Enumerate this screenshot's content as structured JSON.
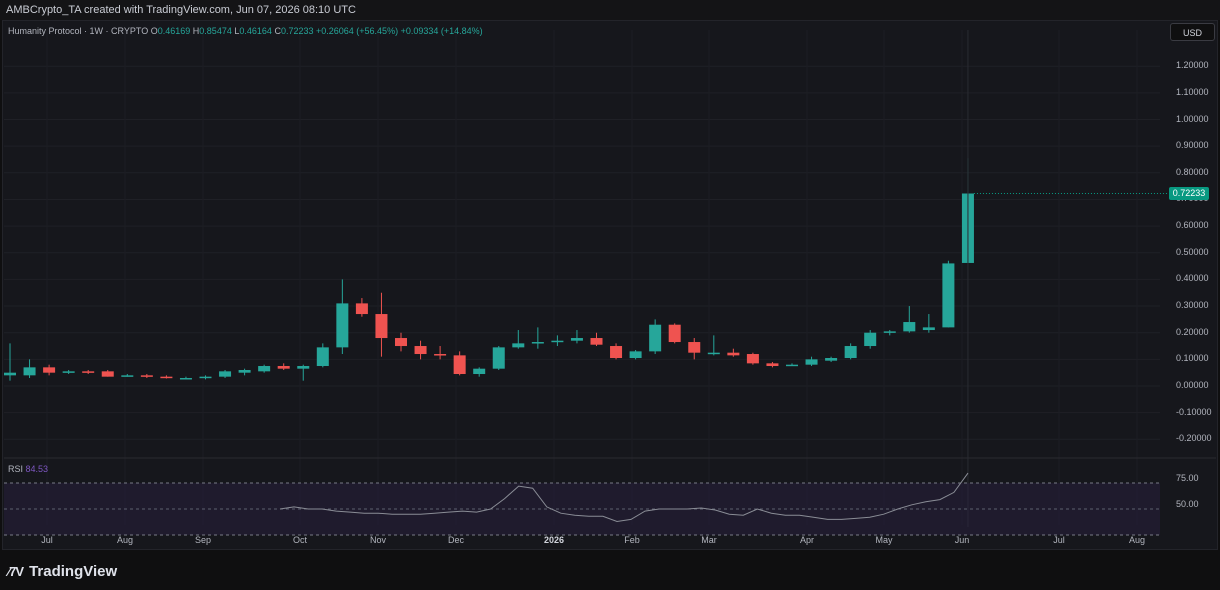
{
  "header": {
    "attribution": "AMBCrypto_TA created with TradingView.com, Jun 07, 2026 08:10 UTC"
  },
  "legend": {
    "symbol": "Humanity Protocol · 1W · CRYPTO",
    "o_label": "O",
    "o_value": "0.46169",
    "h_label": "H",
    "h_value": "0.85474",
    "l_label": "L",
    "l_value": "0.46164",
    "c_label": "C",
    "c_value": "0.72233",
    "change": "+0.26064 (+56.45%)",
    "vol_change": "+0.09334 (+14.84%)"
  },
  "currency": "USD",
  "last_price": "0.72233",
  "price_axis": [
    "1.20000",
    "1.10000",
    "1.00000",
    "0.90000",
    "0.80000",
    "0.70000",
    "0.60000",
    "0.50000",
    "0.40000",
    "0.30000",
    "0.20000",
    "0.10000",
    "0.00000",
    "-0.10000",
    "-0.20000"
  ],
  "rsi": {
    "label": "RSI",
    "value": "84.53",
    "levels": [
      "75.00",
      "50.00"
    ]
  },
  "time_axis": [
    "Jul",
    "Aug",
    "Sep",
    "Oct",
    "Nov",
    "Dec",
    "2026",
    "Feb",
    "Mar",
    "Apr",
    "May",
    "Jun",
    "Jul",
    "Aug"
  ],
  "brand": {
    "name": "TradingView"
  },
  "colors": {
    "up": "#26a69a",
    "down": "#ef5350",
    "rsi_line": "#8a8d96",
    "background": "#16171c"
  },
  "chart_data": {
    "type": "candlestick",
    "title": "Humanity Protocol · 1W · CRYPTO",
    "ylim": [
      -0.22,
      1.3
    ],
    "candles": [
      {
        "o": 0.04,
        "h": 0.16,
        "l": 0.02,
        "c": 0.05
      },
      {
        "o": 0.04,
        "h": 0.1,
        "l": 0.03,
        "c": 0.07
      },
      {
        "o": 0.07,
        "h": 0.08,
        "l": 0.04,
        "c": 0.05
      },
      {
        "o": 0.05,
        "h": 0.06,
        "l": 0.045,
        "c": 0.055
      },
      {
        "o": 0.055,
        "h": 0.06,
        "l": 0.045,
        "c": 0.05
      },
      {
        "o": 0.055,
        "h": 0.06,
        "l": 0.035,
        "c": 0.035
      },
      {
        "o": 0.04,
        "h": 0.045,
        "l": 0.035,
        "c": 0.04
      },
      {
        "o": 0.04,
        "h": 0.045,
        "l": 0.03,
        "c": 0.035
      },
      {
        "o": 0.035,
        "h": 0.04,
        "l": 0.028,
        "c": 0.03
      },
      {
        "o": 0.03,
        "h": 0.035,
        "l": 0.025,
        "c": 0.03
      },
      {
        "o": 0.03,
        "h": 0.04,
        "l": 0.025,
        "c": 0.035
      },
      {
        "o": 0.035,
        "h": 0.06,
        "l": 0.03,
        "c": 0.055
      },
      {
        "o": 0.05,
        "h": 0.065,
        "l": 0.04,
        "c": 0.06
      },
      {
        "o": 0.055,
        "h": 0.08,
        "l": 0.05,
        "c": 0.075
      },
      {
        "o": 0.075,
        "h": 0.085,
        "l": 0.06,
        "c": 0.065
      },
      {
        "o": 0.065,
        "h": 0.08,
        "l": 0.02,
        "c": 0.075
      },
      {
        "o": 0.075,
        "h": 0.16,
        "l": 0.07,
        "c": 0.145
      },
      {
        "o": 0.145,
        "h": 0.4,
        "l": 0.12,
        "c": 0.31
      },
      {
        "o": 0.31,
        "h": 0.33,
        "l": 0.26,
        "c": 0.27
      },
      {
        "o": 0.27,
        "h": 0.35,
        "l": 0.11,
        "c": 0.18
      },
      {
        "o": 0.18,
        "h": 0.2,
        "l": 0.13,
        "c": 0.15
      },
      {
        "o": 0.15,
        "h": 0.17,
        "l": 0.1,
        "c": 0.12
      },
      {
        "o": 0.12,
        "h": 0.15,
        "l": 0.1,
        "c": 0.115
      },
      {
        "o": 0.115,
        "h": 0.13,
        "l": 0.04,
        "c": 0.045
      },
      {
        "o": 0.045,
        "h": 0.07,
        "l": 0.035,
        "c": 0.065
      },
      {
        "o": 0.065,
        "h": 0.15,
        "l": 0.06,
        "c": 0.145
      },
      {
        "o": 0.145,
        "h": 0.21,
        "l": 0.14,
        "c": 0.16
      },
      {
        "o": 0.16,
        "h": 0.22,
        "l": 0.14,
        "c": 0.165
      },
      {
        "o": 0.165,
        "h": 0.19,
        "l": 0.15,
        "c": 0.17
      },
      {
        "o": 0.17,
        "h": 0.21,
        "l": 0.16,
        "c": 0.18
      },
      {
        "o": 0.18,
        "h": 0.2,
        "l": 0.15,
        "c": 0.155
      },
      {
        "o": 0.15,
        "h": 0.16,
        "l": 0.1,
        "c": 0.105
      },
      {
        "o": 0.105,
        "h": 0.135,
        "l": 0.1,
        "c": 0.13
      },
      {
        "o": 0.13,
        "h": 0.25,
        "l": 0.12,
        "c": 0.23
      },
      {
        "o": 0.23,
        "h": 0.235,
        "l": 0.16,
        "c": 0.165
      },
      {
        "o": 0.165,
        "h": 0.18,
        "l": 0.1,
        "c": 0.125
      },
      {
        "o": 0.125,
        "h": 0.19,
        "l": 0.115,
        "c": 0.125
      },
      {
        "o": 0.125,
        "h": 0.14,
        "l": 0.11,
        "c": 0.115
      },
      {
        "o": 0.12,
        "h": 0.125,
        "l": 0.08,
        "c": 0.085
      },
      {
        "o": 0.085,
        "h": 0.09,
        "l": 0.07,
        "c": 0.075
      },
      {
        "o": 0.08,
        "h": 0.085,
        "l": 0.075,
        "c": 0.08
      },
      {
        "o": 0.08,
        "h": 0.11,
        "l": 0.075,
        "c": 0.1
      },
      {
        "o": 0.095,
        "h": 0.11,
        "l": 0.09,
        "c": 0.105
      },
      {
        "o": 0.105,
        "h": 0.16,
        "l": 0.1,
        "c": 0.15
      },
      {
        "o": 0.15,
        "h": 0.21,
        "l": 0.14,
        "c": 0.2
      },
      {
        "o": 0.2,
        "h": 0.21,
        "l": 0.19,
        "c": 0.205
      },
      {
        "o": 0.205,
        "h": 0.3,
        "l": 0.2,
        "c": 0.24
      },
      {
        "o": 0.21,
        "h": 0.27,
        "l": 0.2,
        "c": 0.22
      },
      {
        "o": 0.22,
        "h": 0.47,
        "l": 0.22,
        "c": 0.46
      },
      {
        "o": 0.46169,
        "h": 0.85474,
        "l": 0.46164,
        "c": 0.72233
      }
    ],
    "rsi_series": [
      50,
      52,
      50,
      50,
      48,
      47,
      46,
      46,
      45,
      45,
      45,
      46,
      47,
      48,
      47,
      50,
      60,
      72,
      70,
      52,
      46,
      44,
      43,
      43,
      38,
      40,
      48,
      50,
      50,
      50,
      51,
      49,
      45,
      44,
      50,
      46,
      44,
      44,
      42,
      40,
      40,
      41,
      42,
      45,
      50,
      54,
      57,
      59,
      66,
      84.53
    ]
  }
}
